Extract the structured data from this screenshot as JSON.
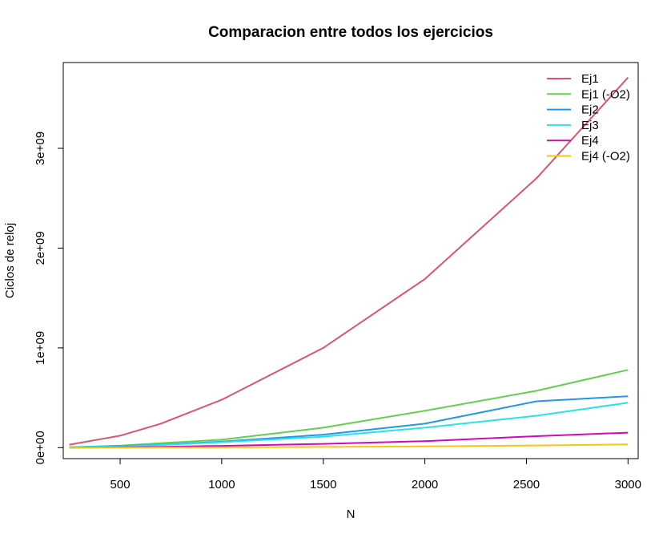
{
  "chart_data": {
    "type": "line",
    "title": "Comparacion entre todos los ejercicios",
    "xlabel": "N",
    "ylabel": "Ciclos de reloj",
    "xlim": [
      220,
      3050
    ],
    "ylim": [
      -110000000,
      3860000000
    ],
    "x_ticks": [
      500,
      1000,
      1500,
      2000,
      2500,
      3000
    ],
    "x_tick_labels": [
      "500",
      "1000",
      "1500",
      "2000",
      "2500",
      "3000"
    ],
    "y_ticks": [
      0,
      1000000000,
      2000000000,
      3000000000
    ],
    "y_tick_labels": [
      "0e+00",
      "1e+09",
      "2e+09",
      "3e+09"
    ],
    "grid": false,
    "legend_position": "top-right",
    "x": [
      250,
      500,
      700,
      1000,
      1500,
      2000,
      2550,
      3000
    ],
    "series": [
      {
        "name": "Ej1",
        "color": "#DF536B",
        "values": [
          30000000,
          120000000,
          240000000,
          480000000,
          1000000000,
          1690000000,
          2700000000,
          3710000000
        ]
      },
      {
        "name": "Ej1 (-O2)",
        "color": "#61D04F",
        "values": [
          4000000,
          20000000,
          45000000,
          80000000,
          200000000,
          370000000,
          570000000,
          780000000
        ]
      },
      {
        "name": "Ej2",
        "color": "#2297E6",
        "values": [
          3000000,
          15000000,
          30000000,
          60000000,
          130000000,
          240000000,
          465000000,
          515000000
        ]
      },
      {
        "name": "Ej3",
        "color": "#28E2E5",
        "values": [
          3000000,
          13000000,
          27000000,
          55000000,
          110000000,
          200000000,
          320000000,
          450000000
        ]
      },
      {
        "name": "Ej4",
        "color": "#CD0BBC",
        "values": [
          1000000,
          4000000,
          9000000,
          18000000,
          38000000,
          65000000,
          115000000,
          150000000
        ]
      },
      {
        "name": "Ej4 (-O2)",
        "color": "#F5C710",
        "values": [
          100000,
          500000,
          1500000,
          3000000,
          7000000,
          12000000,
          22000000,
          33000000
        ]
      }
    ]
  }
}
